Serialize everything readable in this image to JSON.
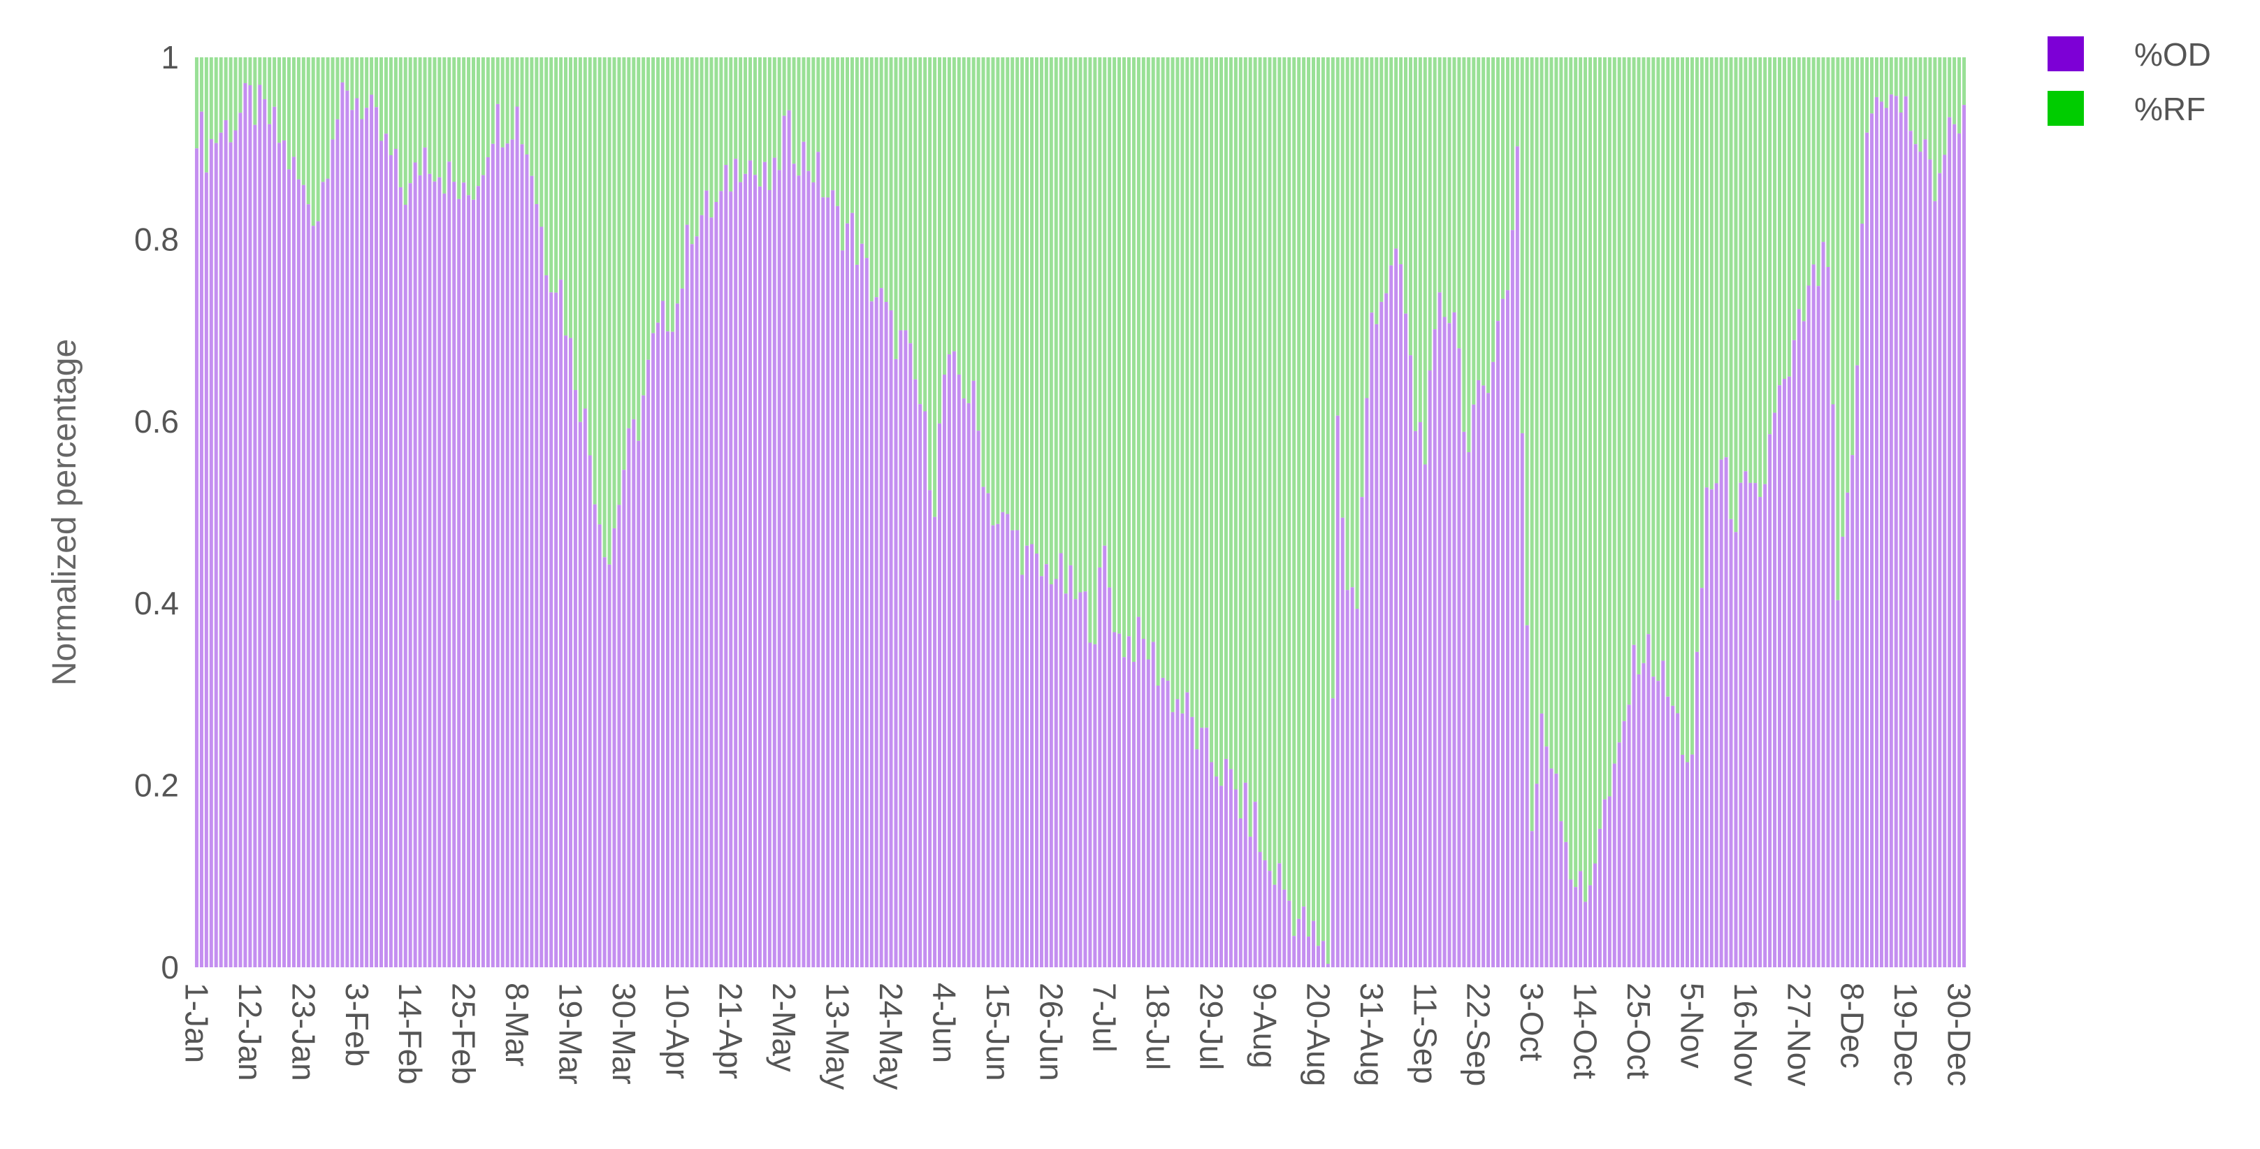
{
  "chart_data": {
    "type": "bar",
    "stacked": true,
    "normalized": true,
    "xlabel": "",
    "ylabel": "Normalized percentage",
    "ylim": [
      0,
      1
    ],
    "yticks": [
      0,
      0.2,
      0.4,
      0.6,
      0.8,
      1
    ],
    "ytick_labels": [
      "0",
      "0.2",
      "0.4",
      "0.6",
      "0.8",
      "1"
    ],
    "xtick_labels": [
      "1-Jan",
      "12-Jan",
      "23-Jan",
      "3-Feb",
      "14-Feb",
      "25-Feb",
      "8-Mar",
      "19-Mar",
      "30-Mar",
      "10-Apr",
      "21-Apr",
      "2-May",
      "13-May",
      "24-May",
      "4-Jun",
      "15-Jun",
      "26-Jun",
      "7-Jul",
      "18-Jul",
      "29-Jul",
      "9-Aug",
      "20-Aug",
      "31-Aug",
      "11-Sep",
      "22-Sep",
      "3-Oct",
      "14-Oct",
      "25-Oct",
      "5-Nov",
      "16-Nov",
      "27-Nov",
      "8-Dec",
      "19-Dec",
      "30-Dec"
    ],
    "x_start": "1-Jan",
    "x_end": "31-Dec",
    "legend_position": "top-right",
    "od_profile_anchors": [
      [
        "1-Jan",
        0.93
      ],
      [
        "3-Jan",
        0.9
      ],
      [
        "6-Jan",
        0.92
      ],
      [
        "9-Jan",
        0.93
      ],
      [
        "12-Jan",
        0.95
      ],
      [
        "16-Jan",
        0.93
      ],
      [
        "19-Jan",
        0.9
      ],
      [
        "23-Jan",
        0.85
      ],
      [
        "26-Jan",
        0.83
      ],
      [
        "29-Jan",
        0.93
      ],
      [
        "1-Feb",
        0.95
      ],
      [
        "3-Feb",
        0.96
      ],
      [
        "6-Feb",
        0.93
      ],
      [
        "9-Feb",
        0.9
      ],
      [
        "12-Feb",
        0.86
      ],
      [
        "14-Feb",
        0.85
      ],
      [
        "17-Feb",
        0.9
      ],
      [
        "20-Feb",
        0.88
      ],
      [
        "23-Feb",
        0.86
      ],
      [
        "25-Feb",
        0.84
      ],
      [
        "28-Feb",
        0.87
      ],
      [
        "3-Mar",
        0.93
      ],
      [
        "6-Mar",
        0.93
      ],
      [
        "8-Mar",
        0.94
      ],
      [
        "11-Mar",
        0.88
      ],
      [
        "14-Mar",
        0.78
      ],
      [
        "17-Mar",
        0.75
      ],
      [
        "19-Mar",
        0.68
      ],
      [
        "22-Mar",
        0.6
      ],
      [
        "25-Mar",
        0.5
      ],
      [
        "27-Mar",
        0.45
      ],
      [
        "30-Mar",
        0.55
      ],
      [
        "2-Apr",
        0.6
      ],
      [
        "5-Apr",
        0.68
      ],
      [
        "8-Apr",
        0.72
      ],
      [
        "10-Apr",
        0.73
      ],
      [
        "13-Apr",
        0.82
      ],
      [
        "16-Apr",
        0.83
      ],
      [
        "19-Apr",
        0.84
      ],
      [
        "21-Apr",
        0.87
      ],
      [
        "24-Apr",
        0.9
      ],
      [
        "27-Apr",
        0.86
      ],
      [
        "30-Apr",
        0.86
      ],
      [
        "2-May",
        0.92
      ],
      [
        "5-May",
        0.9
      ],
      [
        "8-May",
        0.88
      ],
      [
        "11-May",
        0.85
      ],
      [
        "13-May",
        0.82
      ],
      [
        "16-May",
        0.81
      ],
      [
        "19-May",
        0.76
      ],
      [
        "22-May",
        0.73
      ],
      [
        "24-May",
        0.7
      ],
      [
        "27-May",
        0.68
      ],
      [
        "30-May",
        0.62
      ],
      [
        "2-Jun",
        0.52
      ],
      [
        "4-Jun",
        0.65
      ],
      [
        "7-Jun",
        0.65
      ],
      [
        "10-Jun",
        0.62
      ],
      [
        "13-Jun",
        0.52
      ],
      [
        "15-Jun",
        0.49
      ],
      [
        "18-Jun",
        0.48
      ],
      [
        "21-Jun",
        0.45
      ],
      [
        "24-Jun",
        0.43
      ],
      [
        "26-Jun",
        0.44
      ],
      [
        "29-Jun",
        0.42
      ],
      [
        "2-Jul",
        0.4
      ],
      [
        "5-Jul",
        0.38
      ],
      [
        "7-Jul",
        0.45
      ],
      [
        "10-Jul",
        0.36
      ],
      [
        "13-Jul",
        0.36
      ],
      [
        "16-Jul",
        0.35
      ],
      [
        "18-Jul",
        0.33
      ],
      [
        "21-Jul",
        0.3
      ],
      [
        "24-Jul",
        0.28
      ],
      [
        "27-Jul",
        0.24
      ],
      [
        "29-Jul",
        0.23
      ],
      [
        "1-Aug",
        0.21
      ],
      [
        "4-Aug",
        0.18
      ],
      [
        "7-Aug",
        0.16
      ],
      [
        "9-Aug",
        0.11
      ],
      [
        "12-Aug",
        0.1
      ],
      [
        "15-Aug",
        0.06
      ],
      [
        "18-Aug",
        0.04
      ],
      [
        "20-Aug",
        0.02
      ],
      [
        "22-Aug",
        0.01
      ],
      [
        "24-Aug",
        0.6
      ],
      [
        "26-Aug",
        0.42
      ],
      [
        "28-Aug",
        0.4
      ],
      [
        "31-Aug",
        0.72
      ],
      [
        "3-Sep",
        0.75
      ],
      [
        "6-Sep",
        0.77
      ],
      [
        "9-Sep",
        0.6
      ],
      [
        "11-Sep",
        0.58
      ],
      [
        "14-Sep",
        0.72
      ],
      [
        "17-Sep",
        0.73
      ],
      [
        "20-Sep",
        0.56
      ],
      [
        "22-Sep",
        0.62
      ],
      [
        "25-Sep",
        0.68
      ],
      [
        "28-Sep",
        0.75
      ],
      [
        "30-Sep",
        0.9
      ],
      [
        "1-Oct",
        0.6
      ],
      [
        "3-Oct",
        0.15
      ],
      [
        "5-Oct",
        0.26
      ],
      [
        "8-Oct",
        0.22
      ],
      [
        "11-Oct",
        0.11
      ],
      [
        "14-Oct",
        0.07
      ],
      [
        "17-Oct",
        0.16
      ],
      [
        "20-Oct",
        0.2
      ],
      [
        "23-Oct",
        0.3
      ],
      [
        "25-Oct",
        0.35
      ],
      [
        "28-Oct",
        0.34
      ],
      [
        "31-Oct",
        0.3
      ],
      [
        "3-Nov",
        0.25
      ],
      [
        "5-Nov",
        0.22
      ],
      [
        "8-Nov",
        0.52
      ],
      [
        "11-Nov",
        0.55
      ],
      [
        "14-Nov",
        0.5
      ],
      [
        "16-Nov",
        0.52
      ],
      [
        "19-Nov",
        0.5
      ],
      [
        "22-Nov",
        0.62
      ],
      [
        "25-Nov",
        0.64
      ],
      [
        "27-Nov",
        0.7
      ],
      [
        "30-Nov",
        0.75
      ],
      [
        "3-Dec",
        0.78
      ],
      [
        "5-Dec",
        0.4
      ],
      [
        "8-Dec",
        0.55
      ],
      [
        "11-Dec",
        0.92
      ],
      [
        "14-Dec",
        0.97
      ],
      [
        "16-Dec",
        0.95
      ],
      [
        "19-Dec",
        0.94
      ],
      [
        "22-Dec",
        0.9
      ],
      [
        "25-Dec",
        0.86
      ],
      [
        "27-Dec",
        0.9
      ],
      [
        "30-Dec",
        0.94
      ],
      [
        "31-Dec",
        0.93
      ]
    ],
    "series": [
      {
        "name": "%OD",
        "values_from": "od_profile_anchors",
        "color": "#c48ef0"
      },
      {
        "name": "%RF",
        "values_from": "1 - %OD",
        "color": "#99e096"
      }
    ],
    "legend": [
      {
        "name": "%OD",
        "swatch_color": "#7d00d6"
      },
      {
        "name": "%RF",
        "swatch_color": "#00cc00"
      }
    ]
  }
}
